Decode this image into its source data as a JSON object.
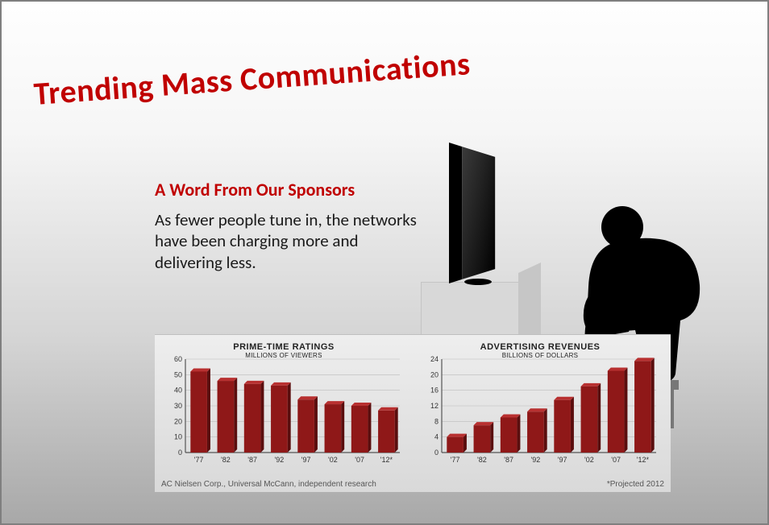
{
  "title": "Trending Mass Communications",
  "subtitle": "A Word From Our Sponsors",
  "body": "As fewer people tune in, the networks have been charging more and delivering less.",
  "source": "AC Nielsen Corp., Universal McCann, independent research",
  "footnote": "*Projected 2012",
  "colors": {
    "accent": "#c00000",
    "bar": "#8f1818",
    "bar_side": "#5a0e0e",
    "bar_top": "#b83030",
    "axis": "#555555",
    "grid": "#bcbcbc",
    "text": "#1a1a1a"
  },
  "chart_left": {
    "type": "bar",
    "title": "PRIME-TIME RATINGS",
    "subtitle": "MILLIONS OF VIEWERS",
    "ylim": [
      0,
      60
    ],
    "ytick_step": 10,
    "categories": [
      "'77",
      "'82",
      "'87",
      "'92",
      "'97",
      "'02",
      "'07",
      "'12*"
    ],
    "values": [
      52,
      46,
      44,
      43,
      34,
      31,
      30,
      27
    ]
  },
  "chart_right": {
    "type": "bar",
    "title": "ADVERTISING REVENUES",
    "subtitle": "BILLIONS OF DOLLARS",
    "ylim": [
      0,
      24
    ],
    "ytick_step": 4,
    "categories": [
      "'77",
      "'82",
      "'87",
      "'92",
      "'97",
      "'02",
      "'07",
      "'12*"
    ],
    "values": [
      4,
      7,
      9,
      10.5,
      13.5,
      17,
      21,
      23.5
    ]
  }
}
